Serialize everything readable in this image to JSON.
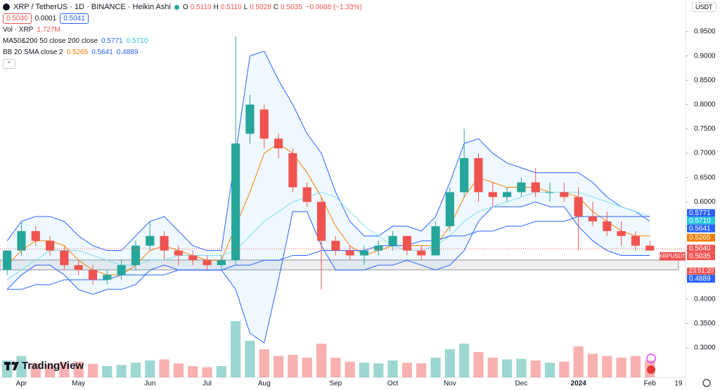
{
  "chart_data": {
    "type": "candlestick",
    "title": "XRP / TetherUS · 1D · BINANCE · Heikin Ashi",
    "ohlc": [
      {
        "label": "O",
        "value": "0.5110"
      },
      {
        "label": "H",
        "value": "0.5110"
      },
      {
        "label": "L",
        "value": "0.5028"
      },
      {
        "label": "C",
        "value": "0.5035"
      }
    ],
    "change": "−0.0068 (−1.33%)",
    "bid": "0.5040",
    "spread": "0.0001",
    "ask": "0.5041",
    "legend": [
      {
        "name": "Vol · XRP",
        "values": [
          "1.727M"
        ],
        "colors": [
          "#ef5350"
        ]
      },
      {
        "name": "MA50&200 50 close 200 close",
        "values": [
          "0.5771",
          "0.5710"
        ],
        "colors": [
          "#2962ff",
          "#26c6da"
        ]
      },
      {
        "name": "BB 20 SMA close 2",
        "values": [
          "0.5265",
          "0.5641",
          "0.4889"
        ],
        "colors": [
          "#f57c00",
          "#2962ff",
          "#2962ff"
        ]
      }
    ],
    "currency": "USDT",
    "symbol_tag": "XRPUSDT",
    "countdown": "23:51:20",
    "brand": "TradingView",
    "up_color": "#26a69a",
    "down_color": "#ef5350",
    "categories": [
      null,
      "Apr",
      null,
      null,
      null,
      "May",
      null,
      null,
      null,
      null,
      "Jun",
      null,
      null,
      null,
      "Jul",
      null,
      null,
      null,
      "Aug",
      null,
      null,
      null,
      null,
      "Sep",
      null,
      null,
      null,
      "Oct",
      null,
      null,
      null,
      "Nov",
      null,
      null,
      null,
      null,
      "Dec",
      null,
      null,
      null,
      "2024",
      null,
      null,
      null,
      null,
      "Feb",
      null,
      "19"
    ],
    "open": [
      0.46,
      0.5,
      0.54,
      0.52,
      0.5,
      0.47,
      0.46,
      0.44,
      0.45,
      0.47,
      0.51,
      0.53,
      0.5,
      0.49,
      0.48,
      0.47,
      0.48,
      0.74,
      0.79,
      0.73,
      0.7,
      0.63,
      0.6,
      0.52,
      0.5,
      0.49,
      0.5,
      0.51,
      0.53,
      0.5,
      0.49,
      0.55,
      0.62,
      0.69,
      0.62,
      0.61,
      0.62,
      0.64,
      0.62,
      0.62,
      0.61,
      0.57,
      0.56,
      0.54,
      0.53,
      0.51,
      null,
      null
    ],
    "high": [
      0.5,
      0.56,
      0.55,
      0.53,
      0.51,
      0.48,
      0.47,
      0.46,
      0.48,
      0.52,
      0.56,
      0.54,
      0.51,
      0.5,
      0.49,
      0.49,
      0.94,
      0.82,
      0.8,
      0.74,
      0.71,
      0.64,
      0.61,
      0.53,
      0.51,
      0.51,
      0.52,
      0.54,
      0.53,
      0.51,
      0.56,
      0.63,
      0.75,
      0.7,
      0.64,
      0.63,
      0.65,
      0.67,
      0.64,
      0.64,
      0.63,
      0.6,
      0.58,
      0.56,
      0.54,
      0.52,
      null,
      null
    ],
    "low": [
      0.45,
      0.49,
      0.51,
      0.49,
      0.46,
      0.45,
      0.43,
      0.43,
      0.44,
      0.46,
      0.5,
      0.48,
      0.47,
      0.47,
      0.46,
      0.46,
      0.47,
      0.72,
      0.71,
      0.69,
      0.62,
      0.59,
      0.42,
      0.49,
      0.48,
      0.47,
      0.49,
      0.5,
      0.49,
      0.48,
      0.49,
      0.54,
      0.61,
      0.6,
      0.59,
      0.6,
      0.61,
      0.61,
      0.6,
      0.6,
      0.5,
      0.55,
      0.53,
      0.51,
      0.5,
      0.5,
      null,
      null
    ],
    "close": [
      0.5,
      0.54,
      0.52,
      0.5,
      0.47,
      0.46,
      0.44,
      0.45,
      0.47,
      0.51,
      0.53,
      0.5,
      0.49,
      0.48,
      0.47,
      0.48,
      0.72,
      0.8,
      0.73,
      0.71,
      0.63,
      0.6,
      0.52,
      0.5,
      0.49,
      0.5,
      0.51,
      0.53,
      0.5,
      0.49,
      0.55,
      0.62,
      0.69,
      0.62,
      0.61,
      0.62,
      0.64,
      0.62,
      0.62,
      0.61,
      0.57,
      0.56,
      0.54,
      0.53,
      0.51,
      0.5,
      null,
      null
    ],
    "volume": [
      300,
      380,
      250,
      220,
      260,
      280,
      240,
      200,
      220,
      260,
      300,
      320,
      250,
      200,
      180,
      200,
      1000,
      650,
      500,
      380,
      400,
      350,
      600,
      350,
      280,
      260,
      250,
      300,
      260,
      250,
      350,
      500,
      600,
      450,
      350,
      320,
      330,
      300,
      260,
      280,
      550,
      420,
      380,
      350,
      380,
      300,
      null,
      null
    ],
    "bands": {
      "color": "#2962ff",
      "fill": "rgba(33,150,243,0.07)",
      "upper": [
        0.52,
        0.56,
        0.57,
        0.57,
        0.56,
        0.53,
        0.51,
        0.5,
        0.5,
        0.53,
        0.56,
        0.57,
        0.54,
        0.51,
        0.5,
        0.5,
        0.7,
        0.9,
        0.91,
        0.85,
        0.8,
        0.74,
        0.7,
        0.62,
        0.56,
        0.53,
        0.53,
        0.55,
        0.55,
        0.54,
        0.57,
        0.64,
        0.72,
        0.73,
        0.7,
        0.68,
        0.67,
        0.66,
        0.66,
        0.66,
        0.66,
        0.64,
        0.61,
        0.59,
        0.58,
        0.56,
        null,
        null
      ],
      "lower": [
        0.42,
        0.45,
        0.47,
        0.47,
        0.45,
        0.42,
        0.41,
        0.42,
        0.42,
        0.43,
        0.46,
        0.47,
        0.46,
        0.46,
        0.46,
        0.46,
        0.42,
        0.33,
        0.31,
        0.44,
        0.58,
        0.58,
        0.51,
        0.46,
        0.46,
        0.46,
        0.47,
        0.47,
        0.48,
        0.47,
        0.46,
        0.47,
        0.5,
        0.56,
        0.59,
        0.59,
        0.59,
        0.6,
        0.59,
        0.59,
        0.55,
        0.52,
        0.5,
        0.49,
        0.49,
        0.49,
        null,
        null
      ]
    },
    "lines": [
      {
        "color": "#f57c00",
        "values": [
          0.47,
          0.5,
          0.52,
          0.52,
          0.51,
          0.48,
          0.46,
          0.45,
          0.45,
          0.47,
          0.5,
          0.51,
          0.5,
          0.49,
          0.48,
          0.48,
          0.55,
          0.62,
          0.7,
          0.72,
          0.7,
          0.66,
          0.61,
          0.55,
          0.51,
          0.49,
          0.5,
          0.51,
          0.51,
          0.51,
          0.51,
          0.55,
          0.61,
          0.65,
          0.64,
          0.63,
          0.63,
          0.63,
          0.62,
          0.62,
          0.61,
          0.58,
          0.56,
          0.54,
          0.53,
          0.53,
          null,
          null
        ]
      },
      {
        "color": "#80deea",
        "values": [
          0.44,
          0.46,
          0.48,
          0.5,
          0.5,
          0.5,
          0.49,
          0.48,
          0.47,
          0.47,
          0.48,
          0.48,
          0.49,
          0.49,
          0.49,
          0.49,
          0.5,
          0.53,
          0.56,
          0.58,
          0.6,
          0.61,
          0.62,
          0.61,
          0.58,
          0.55,
          0.53,
          0.51,
          0.5,
          0.5,
          0.51,
          0.53,
          0.56,
          0.58,
          0.59,
          0.6,
          0.61,
          0.62,
          0.62,
          0.62,
          0.62,
          0.61,
          0.6,
          0.59,
          0.58,
          0.57,
          null,
          null
        ]
      },
      {
        "color": "#2962ff",
        "values": [
          0.42,
          0.42,
          0.43,
          0.43,
          0.44,
          0.44,
          0.44,
          0.44,
          0.45,
          0.45,
          0.45,
          0.45,
          0.46,
          0.46,
          0.46,
          0.46,
          0.47,
          0.47,
          0.48,
          0.48,
          0.49,
          0.49,
          0.5,
          0.5,
          0.5,
          0.5,
          0.51,
          0.51,
          0.51,
          0.52,
          0.52,
          0.53,
          0.53,
          0.54,
          0.54,
          0.55,
          0.55,
          0.56,
          0.56,
          0.56,
          0.57,
          0.57,
          0.57,
          0.57,
          0.57,
          0.57,
          null,
          null
        ]
      }
    ],
    "ylim": [
      0.235,
      1.015
    ],
    "yticks": [
      {
        "value": 0.3,
        "label": "0.3000"
      },
      {
        "value": 0.35,
        "label": "0.3500"
      },
      {
        "value": 0.4,
        "label": "0.4000"
      },
      {
        "value": 0.45,
        "label": "0.4500"
      },
      {
        "value": 0.5,
        "label": "0.5000"
      },
      {
        "value": 0.55,
        "label": "0.5500"
      },
      {
        "value": 0.6,
        "label": "0.6000"
      },
      {
        "value": 0.65,
        "label": "0.6500"
      },
      {
        "value": 0.7,
        "label": "0.7000"
      },
      {
        "value": 0.75,
        "label": "0.7500"
      },
      {
        "value": 0.8,
        "label": "0.8000"
      },
      {
        "value": 0.85,
        "label": "0.8500"
      },
      {
        "value": 0.9,
        "label": "0.9000"
      },
      {
        "value": 0.95,
        "label": "0.9500"
      }
    ],
    "price_tags": [
      {
        "value": 0.5771,
        "label": "0.5771",
        "color": "#2962ff"
      },
      {
        "value": 0.571,
        "label": "0.5710",
        "color": "#26c6da"
      },
      {
        "value": 0.5641,
        "label": "0.5641",
        "color": "#2962ff"
      },
      {
        "value": 0.5265,
        "label": "0.5265",
        "color": "#f57c00"
      },
      {
        "value": 0.504,
        "label": "0.5040",
        "color": "#ef5350"
      },
      {
        "value": 0.5035,
        "label": "0.5035",
        "color": "#ef5350"
      },
      {
        "value": 0.4889,
        "label": "0.4889",
        "color": "#2962ff"
      }
    ],
    "grid": false
  }
}
